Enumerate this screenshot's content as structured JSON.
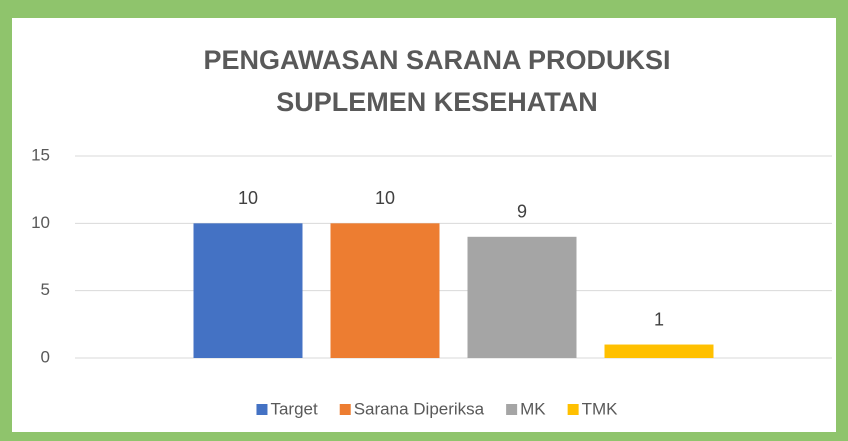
{
  "chart_data": {
    "type": "bar",
    "title": [
      "PENGAWASAN SARANA PRODUKSI",
      "SUPLEMEN KESEHATAN"
    ],
    "categories": [
      null
    ],
    "series": [
      {
        "name": "Target",
        "color": "#4472c4",
        "values": [
          10
        ]
      },
      {
        "name": "Sarana Diperiksa",
        "color": "#ed7d31",
        "values": [
          10
        ]
      },
      {
        "name": "MK",
        "color": "#a5a5a5",
        "values": [
          9
        ]
      },
      {
        "name": "TMK",
        "color": "#ffc000",
        "values": [
          1
        ]
      }
    ],
    "ylim": [
      0,
      15
    ],
    "yticks": [
      0,
      5,
      10,
      15
    ],
    "grid": true,
    "legend": "bottom"
  }
}
